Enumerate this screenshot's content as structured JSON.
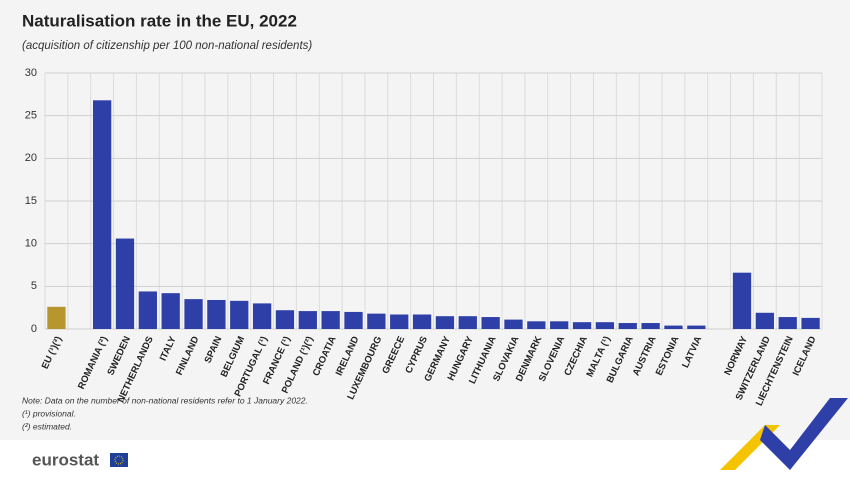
{
  "chart_data": {
    "type": "bar",
    "title": "Naturalisation rate in the EU, 2022",
    "subtitle": "(acquisition of citizenship per 100 non-national residents)",
    "categories": [
      "EU (¹)(²)",
      null,
      "ROMANIA (²)",
      "SWEDEN",
      "NETHERLANDS",
      "ITALY",
      "FINLAND",
      "SPAIN",
      "BELGIUM",
      "PORTUGAL (¹)",
      "FRANCE (¹)",
      "POLAND (¹)(²)",
      "CROATIA",
      "IRELAND",
      "LUXEMBOURG",
      "GREECE",
      "CYPRUS",
      "GERMANY",
      "HUNGARY",
      "LITHUANIA",
      "SLOVAKIA",
      "DENMARK",
      "SLOVENIA",
      "CZECHIA",
      "MALTA (¹)",
      "BULGARIA",
      "AUSTRIA",
      "ESTONIA",
      "LATVIA",
      null,
      "NORWAY",
      "SWITZERLAND",
      "LIECHTENSTEIN",
      "ICELAND"
    ],
    "values": [
      2.6,
      null,
      26.8,
      10.6,
      4.4,
      4.2,
      3.5,
      3.4,
      3.3,
      3.0,
      2.2,
      2.1,
      2.1,
      2.0,
      1.8,
      1.7,
      1.7,
      1.5,
      1.5,
      1.4,
      1.1,
      0.9,
      0.9,
      0.8,
      0.8,
      0.7,
      0.7,
      0.4,
      0.4,
      null,
      6.6,
      1.9,
      1.4,
      1.3
    ],
    "colors": [
      "#b8962e",
      null,
      "#2e3fa8",
      "#2e3fa8",
      "#2e3fa8",
      "#2e3fa8",
      "#2e3fa8",
      "#2e3fa8",
      "#2e3fa8",
      "#2e3fa8",
      "#2e3fa8",
      "#2e3fa8",
      "#2e3fa8",
      "#2e3fa8",
      "#2e3fa8",
      "#2e3fa8",
      "#2e3fa8",
      "#2e3fa8",
      "#2e3fa8",
      "#2e3fa8",
      "#2e3fa8",
      "#2e3fa8",
      "#2e3fa8",
      "#2e3fa8",
      "#2e3fa8",
      "#2e3fa8",
      "#2e3fa8",
      "#2e3fa8",
      "#2e3fa8",
      null,
      "#2e3fa8",
      "#2e3fa8",
      "#2e3fa8",
      "#2e3fa8"
    ],
    "ylim": [
      0,
      30
    ],
    "yticks": [
      0,
      5,
      10,
      15,
      20,
      25,
      30
    ],
    "grid": true,
    "notes": [
      "Note: Data on the number of non-national residents refer to 1 January 2022.",
      "(¹) provisional.",
      "(²) estimated."
    ],
    "source": "eurostat"
  }
}
